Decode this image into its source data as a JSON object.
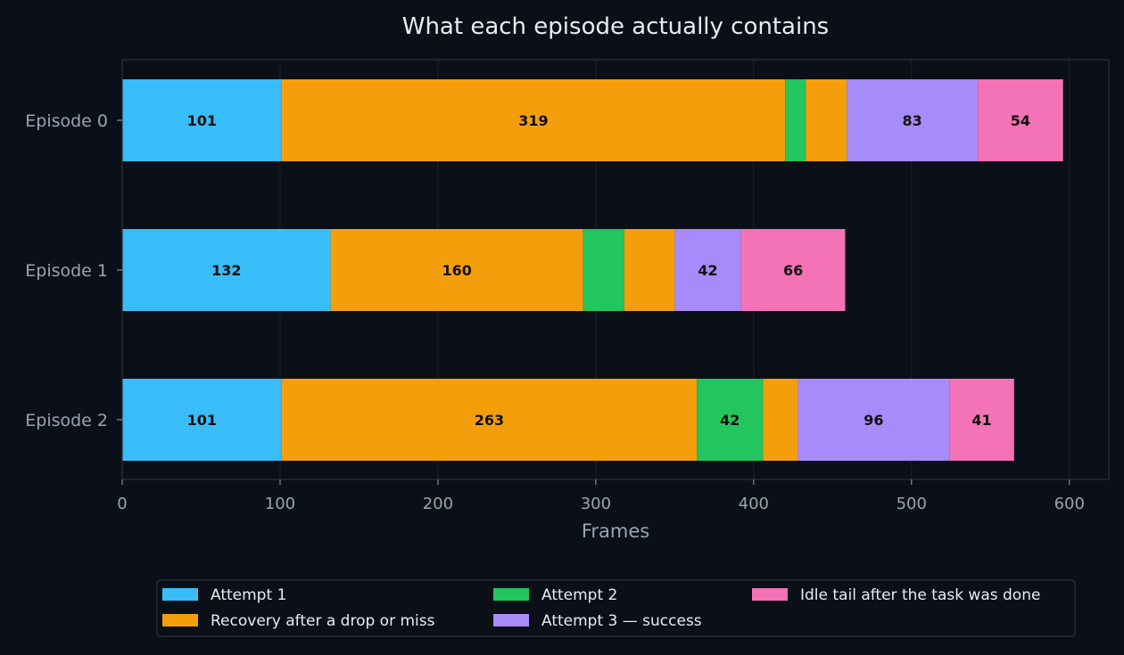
{
  "chart_data": {
    "type": "bar",
    "orientation": "horizontal",
    "stacked": true,
    "title": "What each episode actually contains",
    "xlabel": "Frames",
    "ylabel": "",
    "xlim": [
      0,
      625
    ],
    "xticks": [
      0,
      100,
      200,
      300,
      400,
      500,
      600
    ],
    "grid": true,
    "legend_position": "bottom",
    "categories": [
      "Episode 0",
      "Episode 1",
      "Episode 2"
    ],
    "series": [
      {
        "name": "Attempt 1",
        "color": "#38bdf8",
        "values": [
          101,
          132,
          101
        ],
        "labels": [
          "101",
          "132",
          "101"
        ]
      },
      {
        "name": "Recovery after a drop or miss",
        "color": "#f59e0b",
        "values": [
          319,
          160,
          263
        ],
        "labels": [
          "319",
          "160",
          "263"
        ]
      },
      {
        "name": "Attempt 2",
        "color": "#22c55e",
        "values": [
          13,
          26,
          42
        ],
        "labels": [
          "",
          "",
          "42"
        ]
      },
      {
        "name": "Recovery after a drop or miss",
        "color": "#f59e0b",
        "values": [
          26,
          32,
          22
        ],
        "labels": [
          "",
          "",
          ""
        ],
        "legend": false
      },
      {
        "name": "Attempt 3 — success",
        "color": "#a78bfa",
        "values": [
          83,
          42,
          96
        ],
        "labels": [
          "83",
          "42",
          "96"
        ]
      },
      {
        "name": "Idle tail after the task was done",
        "color": "#f472b6",
        "values": [
          54,
          66,
          41
        ],
        "labels": [
          "54",
          "66",
          "41"
        ]
      }
    ],
    "legend": [
      {
        "name": "Attempt 1",
        "color": "#38bdf8"
      },
      {
        "name": "Recovery after a drop or miss",
        "color": "#f59e0b"
      },
      {
        "name": "Attempt 2",
        "color": "#22c55e"
      },
      {
        "name": "Attempt 3 — success",
        "color": "#a78bfa"
      },
      {
        "name": "Idle tail after the task was done",
        "color": "#f472b6"
      }
    ],
    "colors": {
      "background": "#0b0f17",
      "axis": "#2a3140",
      "grid": "#1c2230"
    }
  }
}
